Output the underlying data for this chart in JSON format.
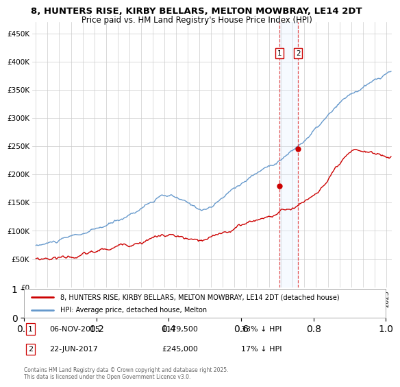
{
  "title": "8, HUNTERS RISE, KIRBY BELLARS, MELTON MOWBRAY, LE14 2DT",
  "subtitle": "Price paid vs. HM Land Registry's House Price Index (HPI)",
  "ylim": [
    0,
    470000
  ],
  "yticks": [
    0,
    50000,
    100000,
    150000,
    200000,
    250000,
    300000,
    350000,
    400000,
    450000
  ],
  "ytick_labels": [
    "£0",
    "£50K",
    "£100K",
    "£150K",
    "£200K",
    "£250K",
    "£300K",
    "£350K",
    "£400K",
    "£450K"
  ],
  "legend_property_label": "8, HUNTERS RISE, KIRBY BELLARS, MELTON MOWBRAY, LE14 2DT (detached house)",
  "legend_hpi_label": "HPI: Average price, detached house, Melton",
  "property_color": "#cc0000",
  "hpi_color": "#6699cc",
  "transaction1_date": "06-NOV-2015",
  "transaction1_price": 179500,
  "transaction1_note": "33% ↓ HPI",
  "transaction2_date": "22-JUN-2017",
  "transaction2_price": 245000,
  "transaction2_note": "17% ↓ HPI",
  "transaction1_x": 2015.85,
  "transaction2_x": 2017.47,
  "vline_color": "#dd3333",
  "shade_color": "#ddeeff",
  "footer": "Contains HM Land Registry data © Crown copyright and database right 2025.\nThis data is licensed under the Open Government Licence v3.0.",
  "background_color": "#ffffff",
  "grid_color": "#cccccc"
}
